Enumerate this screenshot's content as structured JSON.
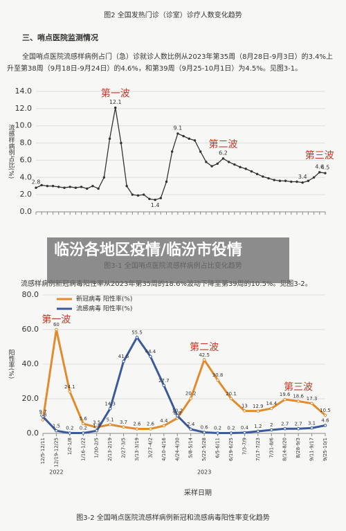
{
  "caption_top": "图2 全国发热门诊（诊室）诊疗人数变化趋势",
  "section_title": "三、哨点医院监测情况",
  "paragraph_1": "全国哨点医院流感样病例占门（急）诊就诊人数比例从2023年第35周（8月28日-9月3日）的3.4%上升至第38周（9月18日-9月24日）的4.6%，和第39周（9月25-10月1日）为4.5%。见图3-1。",
  "banner": "临汾各地区疫情/临汾市役情",
  "paragraph_2": "流感样病例新冠病毒阳性率从2023年第35周的18.6%波动下降至第39周的10.5%。见图3-2。",
  "chart_data": [
    {
      "type": "line",
      "title": "图3-1 全国哨点医院流感样病例占比变化趋势",
      "ylabel": "流感样病例占比(%)",
      "annotations": [
        "第一波",
        "第二波",
        "第三波"
      ],
      "annotation_color": "#c0392b",
      "color": "#333333",
      "categories": [
        null,
        null,
        null,
        null,
        null,
        null,
        null,
        null,
        null,
        null,
        null,
        null,
        null,
        null,
        null,
        null,
        null,
        null,
        null,
        null,
        null,
        null,
        null,
        null,
        null,
        null,
        null,
        null,
        null,
        null,
        null,
        null,
        null,
        null,
        null,
        null,
        null,
        null,
        null,
        null,
        null,
        null,
        null,
        null,
        null,
        null,
        null,
        null,
        null,
        null,
        null,
        null
      ],
      "values": [
        2.8,
        3.1,
        3.0,
        3.0,
        2.9,
        2.8,
        2.9,
        2.8,
        2.9,
        2.7,
        3.0,
        2.7,
        4.0,
        8.5,
        12.1,
        8.0,
        3.0,
        2.0,
        1.9,
        2.0,
        1.5,
        1.4,
        1.6,
        3.5,
        7.0,
        9.1,
        8.8,
        8.5,
        8.3,
        7.0,
        5.8,
        5.3,
        5.6,
        6.2,
        5.8,
        5.5,
        5.2,
        5.0,
        4.7,
        4.4,
        4.1,
        3.9,
        3.7,
        3.6,
        3.6,
        3.5,
        3.5,
        3.4,
        3.6,
        4.0,
        4.6,
        4.5
      ],
      "value_labels": [
        "2.8",
        null,
        null,
        null,
        null,
        null,
        null,
        null,
        null,
        null,
        null,
        null,
        null,
        null,
        "12.1",
        null,
        null,
        null,
        null,
        null,
        null,
        "1.4",
        null,
        null,
        null,
        "9.1",
        null,
        null,
        null,
        null,
        null,
        null,
        null,
        "6.2",
        null,
        null,
        null,
        null,
        null,
        null,
        null,
        null,
        null,
        null,
        null,
        null,
        null,
        "3.4",
        null,
        null,
        "4.6",
        "4.5"
      ],
      "ylim": [
        0,
        14
      ],
      "yticks": [
        {
          "value": 0,
          "label": "0.0"
        },
        {
          "value": 2,
          "label": "2.0"
        },
        {
          "value": 4,
          "label": "4.0"
        },
        {
          "value": 6,
          "label": "6.0"
        },
        {
          "value": 8,
          "label": "8.0"
        },
        {
          "value": 10,
          "label": "10.0"
        },
        {
          "value": 12,
          "label": "12.0"
        },
        {
          "value": 14,
          "label": "14.0"
        }
      ],
      "grid": true
    },
    {
      "type": "line",
      "title": "图3-2 全国哨点医院流感样病例新冠和流感病毒阳性率变化趋势",
      "ylabel": "阳性率(%)",
      "xlabel": "采样日期",
      "year_labels": [
        "2022",
        "2023"
      ],
      "annotations": [
        "第一波",
        "第二波",
        "第三波"
      ],
      "annotation_color": "#c0392b",
      "categories": [
        "12/5-12/11",
        "12/19-12/25",
        "1/2-1/8",
        "1/16-1/22",
        "1/30-2/5",
        "2/13-2/19",
        "2/27-3/5",
        "3/13-3/19",
        "3/27-4/2",
        "4/10-4/16",
        "4/24-4/30",
        "5/8-5/14",
        "5/22-5/28",
        "6/5-6/11",
        "6/19-6/25",
        "7/3-7/9",
        "7/17-7/23",
        "7/31-8/6",
        "8/14-8/20",
        "8/28-9/3",
        "9/11-9/17",
        "9/25-10/1"
      ],
      "series": [
        {
          "name": "新冠病毒 阳性率(%)",
          "color": "#e38b2c",
          "values": [
            7.8,
            60,
            24.1,
            5.6,
            3.5,
            5.1,
            3.7,
            2.6,
            2.6,
            4.4,
            8.8,
            20.2,
            42.5,
            30.8,
            20.1,
            13.0,
            12.9,
            14.4,
            19.6,
            18.6,
            17.3,
            10.5
          ]
        },
        {
          "name": "流感病毒 阳性率(%)",
          "color": "#3a5a9c",
          "values": [
            9.7,
            1.5,
            0.2,
            0.2,
            1.5,
            14.3,
            41.6,
            55.5,
            44.4,
            27.7,
            10.2,
            2.4,
            0.6,
            0.2,
            0.2,
            0.4,
            1.2,
            2.0,
            2.7,
            2.7,
            3.1,
            4.6
          ]
        }
      ],
      "ylim": [
        0,
        80
      ],
      "yticks": [
        {
          "value": 0,
          "label": "0.0"
        },
        {
          "value": 20,
          "label": "20.0"
        },
        {
          "value": 40,
          "label": "40.0"
        },
        {
          "value": 60,
          "label": "60.0"
        },
        {
          "value": 80,
          "label": "80.0"
        }
      ],
      "grid": true
    }
  ]
}
